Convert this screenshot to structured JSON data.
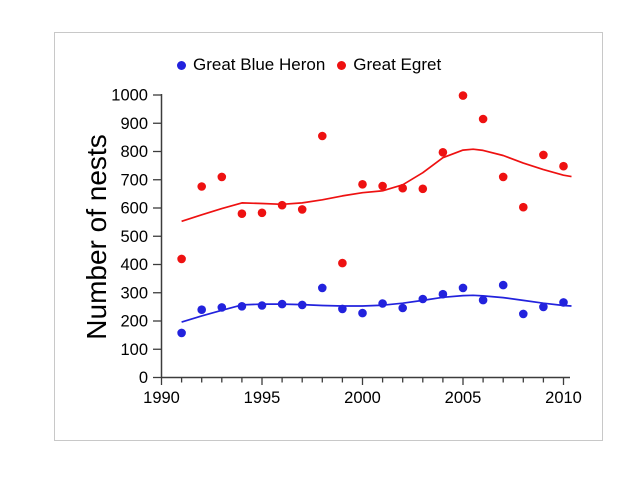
{
  "chart_data": {
    "type": "scatter",
    "title": "",
    "xlabel": "",
    "ylabel": "Number of nests",
    "xlim": [
      1990,
      2010.5
    ],
    "ylim": [
      0,
      1000
    ],
    "x_major_ticks": [
      1990,
      1995,
      2000,
      2005,
      2010
    ],
    "x_minor_tick_interval": 1,
    "y_ticks": [
      0,
      100,
      200,
      300,
      400,
      500,
      600,
      700,
      800,
      900,
      1000
    ],
    "grid": "off",
    "legend_position": "top",
    "marker": "filled-circle",
    "x": [
      1991,
      1992,
      1993,
      1994,
      1995,
      1996,
      1997,
      1998,
      1999,
      2000,
      2001,
      2002,
      2003,
      2004,
      2005,
      2006,
      2007,
      2008,
      2009,
      2010
    ],
    "series": [
      {
        "name": "Great Blue Heron",
        "color": "#2222dd",
        "values": [
          158,
          240,
          248,
          252,
          255,
          260,
          257,
          317,
          243,
          228,
          262,
          246,
          278,
          295,
          317,
          274,
          327,
          225,
          250,
          266
        ],
        "trend": [
          [
            1991,
            196
          ],
          [
            1992,
            218
          ],
          [
            1993,
            238
          ],
          [
            1994,
            257
          ],
          [
            1995,
            260
          ],
          [
            1996,
            260
          ],
          [
            1997,
            258
          ],
          [
            1998,
            255
          ],
          [
            1999,
            253
          ],
          [
            2000,
            253
          ],
          [
            2001,
            256
          ],
          [
            2002,
            263
          ],
          [
            2003,
            273
          ],
          [
            2004,
            284
          ],
          [
            2005,
            290
          ],
          [
            2005.5,
            291
          ],
          [
            2006,
            289
          ],
          [
            2007,
            283
          ],
          [
            2008,
            273
          ],
          [
            2009,
            263
          ],
          [
            2010,
            255
          ],
          [
            2010.4,
            253
          ]
        ]
      },
      {
        "name": "Great Egret",
        "color": "#ee1111",
        "values": [
          420,
          676,
          710,
          580,
          583,
          610,
          595,
          855,
          405,
          684,
          678,
          670,
          668,
          797,
          998,
          915,
          710,
          603,
          788,
          748
        ],
        "trend": [
          [
            1991,
            553
          ],
          [
            1992,
            576
          ],
          [
            1993,
            598
          ],
          [
            1994,
            618
          ],
          [
            1995,
            616
          ],
          [
            1996,
            613
          ],
          [
            1997,
            618
          ],
          [
            1998,
            629
          ],
          [
            1999,
            643
          ],
          [
            2000,
            654
          ],
          [
            2001,
            661
          ],
          [
            2002,
            682
          ],
          [
            2003,
            725
          ],
          [
            2004,
            778
          ],
          [
            2005,
            805
          ],
          [
            2005.5,
            808
          ],
          [
            2006,
            804
          ],
          [
            2007,
            786
          ],
          [
            2008,
            759
          ],
          [
            2009,
            736
          ],
          [
            2010,
            716
          ],
          [
            2010.4,
            711
          ]
        ]
      }
    ]
  }
}
